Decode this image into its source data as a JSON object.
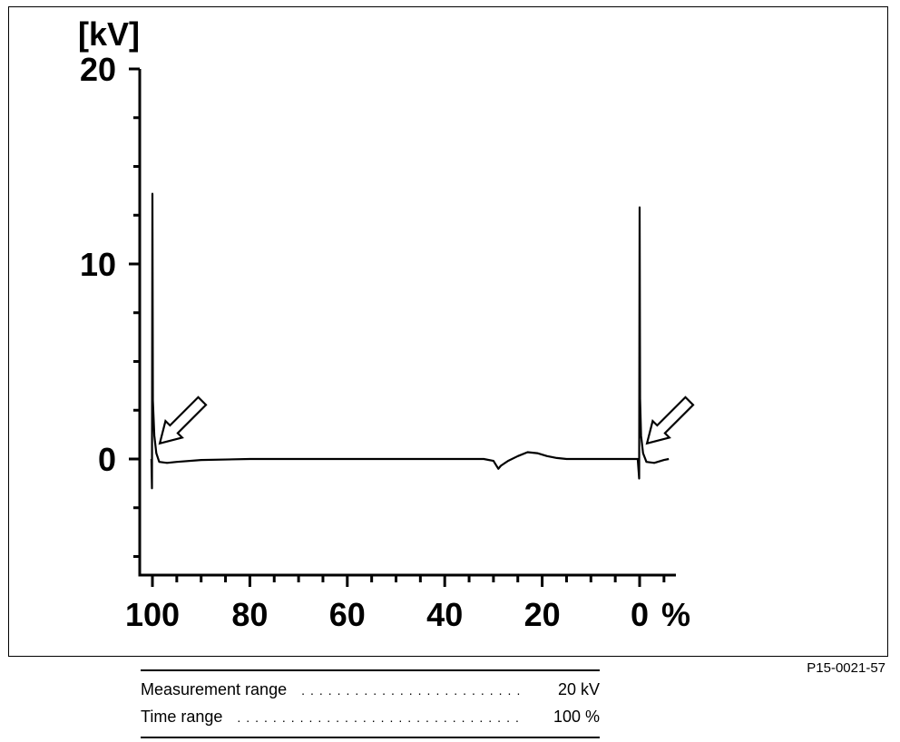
{
  "figure_id": "P15-0021-57",
  "chart_data": {
    "type": "line",
    "ylabel": "[kV]",
    "xlabel_unit": "%",
    "ylim": [
      -5.5,
      20
    ],
    "xlim": [
      102.5,
      -6.5
    ],
    "y_ticks": [
      20,
      10,
      0
    ],
    "y_minor_step": 2.5,
    "x_ticks": [
      {
        "value": 100,
        "label": "100"
      },
      {
        "value": 80,
        "label": "80"
      },
      {
        "value": 60,
        "label": "60"
      },
      {
        "value": 40,
        "label": "40"
      },
      {
        "value": 20,
        "label": "20"
      },
      {
        "value": 0,
        "label": "0"
      }
    ],
    "x_minor_step": 5,
    "series": [
      {
        "values": [
          [
            100.2,
            0.0
          ],
          [
            100.1,
            -1.5
          ],
          [
            100.0,
            13.6
          ],
          [
            99.9,
            3.0
          ],
          [
            99.6,
            1.2
          ],
          [
            99.2,
            0.3
          ],
          [
            98.6,
            -0.15
          ],
          [
            97.0,
            -0.2
          ],
          [
            95.0,
            -0.15
          ],
          [
            90.0,
            -0.05
          ],
          [
            80.0,
            0.0
          ],
          [
            60.0,
            0.0
          ],
          [
            40.0,
            0.0
          ],
          [
            32.0,
            0.0
          ],
          [
            30.0,
            -0.1
          ],
          [
            29.0,
            -0.5
          ],
          [
            28.5,
            -0.35
          ],
          [
            27.0,
            -0.1
          ],
          [
            25.0,
            0.15
          ],
          [
            23.0,
            0.35
          ],
          [
            21.0,
            0.3
          ],
          [
            19.0,
            0.15
          ],
          [
            17.0,
            0.05
          ],
          [
            15.0,
            0.0
          ],
          [
            10.0,
            0.0
          ],
          [
            2.0,
            0.0
          ],
          [
            0.4,
            0.0
          ],
          [
            0.1,
            -1.0
          ],
          [
            0.0,
            12.9
          ],
          [
            -0.1,
            3.1
          ],
          [
            -0.3,
            1.2
          ],
          [
            -0.7,
            0.3
          ],
          [
            -1.4,
            -0.15
          ],
          [
            -3.0,
            -0.2
          ],
          [
            -5.0,
            -0.05
          ],
          [
            -6.0,
            0.0
          ]
        ]
      }
    ],
    "annotations": [
      {
        "type": "arrow",
        "points_to_x": 98.5,
        "points_to_y": 0.8
      },
      {
        "type": "arrow",
        "points_to_x": -1.5,
        "points_to_y": 0.8
      }
    ]
  },
  "legend": {
    "rows": [
      {
        "label": "Measurement range",
        "value": "20 kV"
      },
      {
        "label": "Time range",
        "value": "100 %"
      }
    ],
    "dots": "............................................................"
  }
}
